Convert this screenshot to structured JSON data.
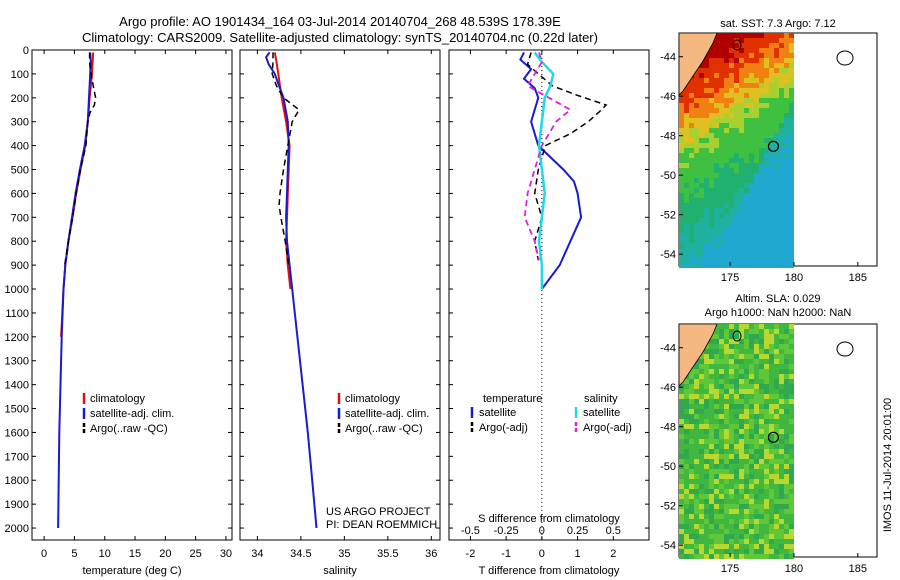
{
  "header": {
    "line1": "Argo profile: AO 1901434_164 03-Jul-2014 20140704_268 48.539S 178.39E",
    "line2": "Climatology: CARS2009. Satellite-adjusted climatology: synTS_20140704.nc (0.22d later)"
  },
  "colors": {
    "climatology": "#e01010",
    "satellite": "#1a1ad0",
    "argo": "#000000",
    "sat_salinity": "#20d8e8",
    "argo_salinity": "#e020e0",
    "land": "#f4b880"
  },
  "chart_data": [
    {
      "type": "line",
      "panel": "temperature",
      "xlabel": "temperature (deg C)",
      "xlim": [
        -2,
        31
      ],
      "xticks": [
        0,
        5,
        10,
        15,
        20,
        25,
        30
      ],
      "ylim": [
        2050,
        0
      ],
      "yticks": [
        0,
        100,
        200,
        300,
        400,
        500,
        600,
        700,
        800,
        900,
        1000,
        1100,
        1200,
        1300,
        1400,
        1500,
        1600,
        1700,
        1800,
        1900,
        2000
      ],
      "legend": [
        "climatology",
        "satellite-adj. clim.",
        "Argo(..raw -QC)"
      ],
      "series": [
        {
          "name": "climatology",
          "style": "climatology",
          "depth": [
            10,
            50,
            100,
            150,
            200,
            300,
            400,
            500,
            600,
            700,
            800,
            900,
            1000,
            1100,
            1200
          ],
          "values": [
            8.1,
            8.0,
            7.9,
            7.7,
            7.5,
            7.2,
            6.8,
            6.0,
            5.3,
            4.7,
            4.0,
            3.5,
            3.2,
            3.0,
            2.8
          ]
        },
        {
          "name": "satellite-adj. clim.",
          "style": "satellite",
          "depth": [
            10,
            50,
            100,
            150,
            200,
            300,
            400,
            500,
            600,
            700,
            800,
            900,
            1000,
            1200,
            1400,
            1600,
            1800,
            2000
          ],
          "values": [
            7.6,
            7.7,
            7.6,
            7.5,
            7.4,
            7.2,
            6.7,
            5.9,
            5.2,
            4.6,
            4.0,
            3.5,
            3.2,
            2.9,
            2.7,
            2.5,
            2.4,
            2.3
          ]
        },
        {
          "name": "Argo(..raw -QC)",
          "style": "argo",
          "depth": [
            10,
            50,
            80,
            120,
            150,
            200,
            230,
            260,
            300,
            400,
            500,
            600,
            700,
            800,
            900
          ],
          "values": [
            7.5,
            7.5,
            7.6,
            7.9,
            8.1,
            8.5,
            8.3,
            7.6,
            7.2,
            6.9,
            6.0,
            5.3,
            4.7,
            4.0,
            3.4
          ]
        }
      ]
    },
    {
      "type": "line",
      "panel": "salinity",
      "xlabel": "salinity",
      "xlim": [
        33.8,
        36.1
      ],
      "xticks": [
        34,
        34.5,
        35,
        35.5,
        36
      ],
      "ylim": [
        2050,
        0
      ],
      "legend": [
        "climatology",
        "satellite-adj. clim.",
        "Argo(..raw -QC)"
      ],
      "annotation": [
        "US ARGO PROJECT",
        "PI: DEAN ROEMMICH"
      ],
      "series": [
        {
          "name": "climatology",
          "style": "climatology",
          "depth": [
            10,
            50,
            100,
            150,
            200,
            300,
            400,
            500,
            600,
            700,
            800,
            900,
            1000
          ],
          "values": [
            34.2,
            34.22,
            34.24,
            34.26,
            34.28,
            34.33,
            34.37,
            34.36,
            34.35,
            34.34,
            34.33,
            34.35,
            34.38
          ]
        },
        {
          "name": "satellite-adj. clim.",
          "style": "satellite",
          "depth": [
            10,
            30,
            60,
            100,
            150,
            200,
            300,
            400,
            500,
            600,
            700,
            800,
            900,
            1000,
            1200,
            1400,
            1600,
            1800,
            2000
          ],
          "values": [
            34.14,
            34.1,
            34.13,
            34.2,
            34.25,
            34.3,
            34.35,
            34.36,
            34.35,
            34.34,
            34.33,
            34.34,
            34.37,
            34.4,
            34.46,
            34.52,
            34.58,
            34.63,
            34.68
          ]
        },
        {
          "name": "Argo(..raw -QC)",
          "style": "argo",
          "depth": [
            10,
            50,
            100,
            150,
            200,
            250,
            300,
            400,
            500,
            550,
            600,
            650,
            700,
            800,
            900
          ],
          "values": [
            34.18,
            34.18,
            34.17,
            34.22,
            34.3,
            34.48,
            34.4,
            34.35,
            34.3,
            34.28,
            34.26,
            34.25,
            34.27,
            34.32,
            34.36
          ]
        }
      ]
    },
    {
      "type": "line",
      "panel": "difference",
      "xlabel": "T difference from climatology",
      "xlabel_top": "S difference from climatology",
      "xlim": [
        -2.6,
        3
      ],
      "xticks": [
        -2,
        -1,
        0,
        1,
        2
      ],
      "xticks_s": [
        -0.5,
        -0.25,
        0,
        0.25,
        0.5
      ],
      "ylim": [
        2050,
        0
      ],
      "legend_headers": [
        "temperature",
        "salinity"
      ],
      "legend": [
        "satellite",
        "Argo(-adj)",
        "satellite",
        "Argo(-adj)"
      ],
      "series": [
        {
          "name": "temperature satellite",
          "style": "satellite",
          "depth": [
            10,
            40,
            80,
            120,
            160,
            200,
            300,
            400,
            500,
            550,
            600,
            700,
            800,
            900,
            1000
          ],
          "values": [
            -0.5,
            -0.6,
            -0.3,
            -0.5,
            -0.2,
            -0.1,
            -0.3,
            -0.1,
            0.6,
            0.9,
            1.0,
            1.1,
            0.8,
            0.5,
            0.0
          ]
        },
        {
          "name": "temperature Argo(-adj)",
          "style": "argo",
          "depth": [
            10,
            60,
            100,
            150,
            190,
            230,
            260,
            300,
            350,
            400,
            500,
            600,
            700,
            800,
            880
          ],
          "values": [
            -0.3,
            -0.4,
            -0.1,
            0.3,
            1.0,
            1.8,
            1.6,
            1.3,
            0.8,
            0.1,
            -0.1,
            -0.2,
            0.0,
            -0.2,
            -0.1
          ]
        },
        {
          "name": "salinity satellite",
          "style": "sat_salinity",
          "depth": [
            10,
            50,
            100,
            150,
            200,
            300,
            400,
            500,
            600,
            700,
            800,
            900,
            1000
          ],
          "values": [
            -0.05,
            0.0,
            0.08,
            0.06,
            0.02,
            0.0,
            -0.02,
            0.0,
            0.02,
            0.0,
            -0.02,
            0.0,
            0.0
          ]
        },
        {
          "name": "salinity Argo(-adj)",
          "style": "argo_salinity",
          "depth": [
            10,
            50,
            100,
            150,
            200,
            250,
            300,
            400,
            500,
            600,
            700,
            800,
            880
          ],
          "values": [
            -0.02,
            0.0,
            -0.05,
            -0.1,
            0.05,
            0.2,
            0.1,
            0.0,
            -0.05,
            -0.1,
            -0.12,
            -0.05,
            -0.02
          ]
        }
      ]
    },
    {
      "type": "heatmap",
      "panel": "map-sst",
      "title": "sat. SST: 7.3 Argo: 7.12",
      "xlim": [
        171,
        186.5
      ],
      "ylim": [
        -54.6,
        -42.8
      ],
      "xticks": [
        175,
        180,
        185
      ],
      "yticks": [
        -44,
        -46,
        -48,
        -50,
        -52,
        -54
      ],
      "argo_position": [
        178.39,
        -48.539
      ]
    },
    {
      "type": "heatmap",
      "panel": "map-sla",
      "title_lines": [
        "Altim. SLA: 0.029",
        "Argo h1000: NaN h2000: NaN"
      ],
      "xlim": [
        171,
        186.5
      ],
      "ylim": [
        -54.6,
        -42.8
      ],
      "xticks": [
        175,
        180,
        185
      ],
      "yticks": [
        -44,
        -46,
        -48,
        -50,
        -52,
        -54
      ],
      "argo_position": [
        178.39,
        -48.539
      ]
    }
  ],
  "footer_stamp": "IMOS 11-Jul-2014 20:01:00"
}
